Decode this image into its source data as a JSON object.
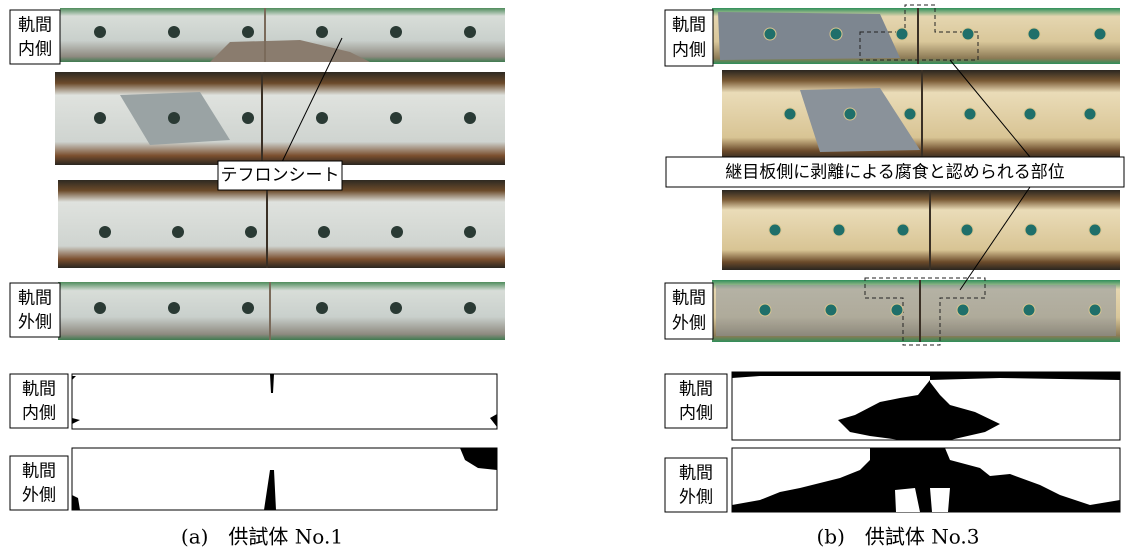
{
  "panels": [
    {
      "photo_labels": [
        [
          "軌間",
          "内側"
        ],
        [
          "軌間",
          "外側"
        ]
      ],
      "callout": "テフロンシート",
      "diagram_labels": [
        [
          "軌間",
          "内側"
        ],
        [
          "軌間",
          "外側"
        ]
      ],
      "caption": "(a)　供試体 No.1"
    },
    {
      "photo_labels": [
        [
          "軌間",
          "内側"
        ],
        [
          "軌間",
          "外側"
        ]
      ],
      "callout": "継目板側に剥離による腐食と認められる部位",
      "diagram_labels": [
        [
          "軌間",
          "内側"
        ],
        [
          "軌間",
          "外側"
        ]
      ],
      "caption": "(b)　供試体 No.3"
    }
  ]
}
